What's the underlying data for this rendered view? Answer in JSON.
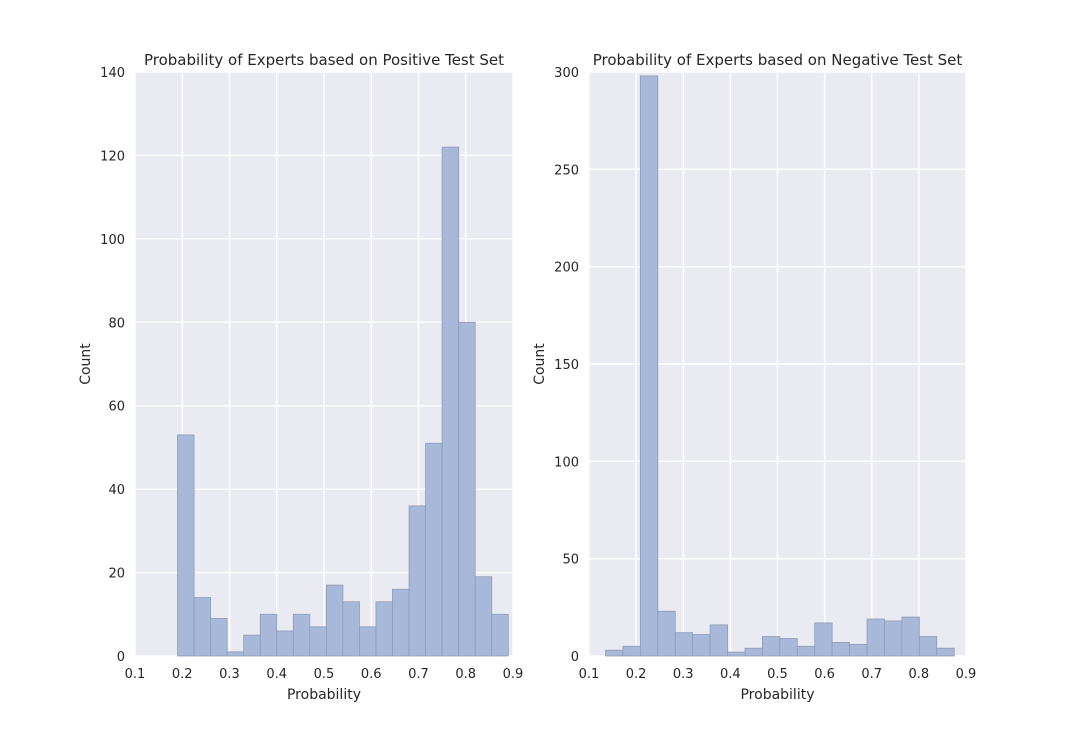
{
  "chart_data": [
    {
      "type": "bar",
      "title": "Probability of Experts based on Positive Test Set",
      "xlabel": "Probability",
      "ylabel": "Count",
      "xlim": [
        0.1,
        0.9
      ],
      "ylim": [
        0,
        140
      ],
      "xticks": [
        "0.1",
        "0.2",
        "0.3",
        "0.4",
        "0.5",
        "0.6",
        "0.7",
        "0.8",
        "0.9"
      ],
      "yticks": [
        "0",
        "20",
        "40",
        "60",
        "80",
        "100",
        "120",
        "140"
      ],
      "bins": [
        {
          "x0": 0.19,
          "x1": 0.225,
          "count": 53
        },
        {
          "x0": 0.225,
          "x1": 0.26,
          "count": 14
        },
        {
          "x0": 0.26,
          "x1": 0.295,
          "count": 9
        },
        {
          "x0": 0.295,
          "x1": 0.33,
          "count": 1
        },
        {
          "x0": 0.33,
          "x1": 0.365,
          "count": 5
        },
        {
          "x0": 0.365,
          "x1": 0.4,
          "count": 10
        },
        {
          "x0": 0.4,
          "x1": 0.435,
          "count": 6
        },
        {
          "x0": 0.435,
          "x1": 0.47,
          "count": 10
        },
        {
          "x0": 0.47,
          "x1": 0.505,
          "count": 7
        },
        {
          "x0": 0.505,
          "x1": 0.54,
          "count": 17
        },
        {
          "x0": 0.54,
          "x1": 0.575,
          "count": 13
        },
        {
          "x0": 0.575,
          "x1": 0.61,
          "count": 7
        },
        {
          "x0": 0.61,
          "x1": 0.645,
          "count": 13
        },
        {
          "x0": 0.645,
          "x1": 0.68,
          "count": 16
        },
        {
          "x0": 0.68,
          "x1": 0.715,
          "count": 36
        },
        {
          "x0": 0.715,
          "x1": 0.75,
          "count": 51
        },
        {
          "x0": 0.75,
          "x1": 0.785,
          "count": 122
        },
        {
          "x0": 0.785,
          "x1": 0.82,
          "count": 80
        },
        {
          "x0": 0.82,
          "x1": 0.855,
          "count": 19
        },
        {
          "x0": 0.855,
          "x1": 0.89,
          "count": 10
        }
      ],
      "grid": true,
      "bar_color": "#a8b8d8",
      "bar_edge_color": "#8e9bb8",
      "background_color": "#eaeaf2",
      "grid_color": "#ffffff"
    },
    {
      "type": "bar",
      "title": "Probability of Experts based on Negative Test Set",
      "xlabel": "Probability",
      "ylabel": "Count",
      "xlim": [
        0.1,
        0.9
      ],
      "ylim": [
        0,
        300
      ],
      "xticks": [
        "0.1",
        "0.2",
        "0.3",
        "0.4",
        "0.5",
        "0.6",
        "0.7",
        "0.8",
        "0.9"
      ],
      "yticks": [
        "0",
        "50",
        "100",
        "150",
        "200",
        "250",
        "300"
      ],
      "bins": [
        {
          "x0": 0.135,
          "x1": 0.172,
          "count": 3
        },
        {
          "x0": 0.172,
          "x1": 0.209,
          "count": 5
        },
        {
          "x0": 0.209,
          "x1": 0.246,
          "count": 298
        },
        {
          "x0": 0.246,
          "x1": 0.283,
          "count": 23
        },
        {
          "x0": 0.283,
          "x1": 0.32,
          "count": 12
        },
        {
          "x0": 0.32,
          "x1": 0.357,
          "count": 11
        },
        {
          "x0": 0.357,
          "x1": 0.394,
          "count": 16
        },
        {
          "x0": 0.394,
          "x1": 0.431,
          "count": 2
        },
        {
          "x0": 0.431,
          "x1": 0.468,
          "count": 4
        },
        {
          "x0": 0.468,
          "x1": 0.505,
          "count": 10
        },
        {
          "x0": 0.505,
          "x1": 0.542,
          "count": 9
        },
        {
          "x0": 0.542,
          "x1": 0.579,
          "count": 5
        },
        {
          "x0": 0.579,
          "x1": 0.616,
          "count": 17
        },
        {
          "x0": 0.616,
          "x1": 0.653,
          "count": 7
        },
        {
          "x0": 0.653,
          "x1": 0.69,
          "count": 6
        },
        {
          "x0": 0.69,
          "x1": 0.727,
          "count": 19
        },
        {
          "x0": 0.727,
          "x1": 0.764,
          "count": 18
        },
        {
          "x0": 0.764,
          "x1": 0.801,
          "count": 20
        },
        {
          "x0": 0.801,
          "x1": 0.838,
          "count": 10
        },
        {
          "x0": 0.838,
          "x1": 0.875,
          "count": 4
        }
      ],
      "grid": true,
      "bar_color": "#a8b8d8",
      "bar_edge_color": "#8e9bb8",
      "background_color": "#eaeaf2",
      "grid_color": "#ffffff"
    }
  ]
}
